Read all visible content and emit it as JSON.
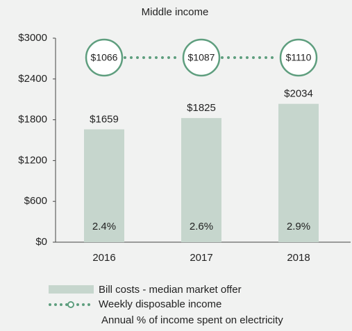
{
  "chart_data": {
    "type": "bar",
    "title": "Middle income",
    "categories": [
      "2016",
      "2017",
      "2018"
    ],
    "series": [
      {
        "name": "Bill costs - median market offer",
        "color": "#c6d6cd",
        "values": [
          1659,
          1825,
          2034
        ],
        "value_labels": [
          "$1659",
          "$1825",
          "$2034"
        ]
      },
      {
        "name": "Weekly disposable income",
        "color": "#5e9e7e",
        "values": [
          1066,
          1087,
          1110
        ],
        "value_labels": [
          "$1066",
          "$1087",
          "$1110"
        ]
      },
      {
        "name": "Annual % of income spent on electricity",
        "values": [
          2.4,
          2.6,
          2.9
        ],
        "value_labels": [
          "2.4%",
          "2.6%",
          "2.9%"
        ]
      }
    ],
    "ylim": [
      0,
      3000
    ],
    "yticks": [
      {
        "value": 0,
        "label": "$0"
      },
      {
        "value": 600,
        "label": "$600"
      },
      {
        "value": 1200,
        "label": "$1200"
      },
      {
        "value": 1800,
        "label": "$1800"
      },
      {
        "value": 2400,
        "label": "$2400"
      },
      {
        "value": 3000,
        "label": "$3000"
      }
    ]
  }
}
